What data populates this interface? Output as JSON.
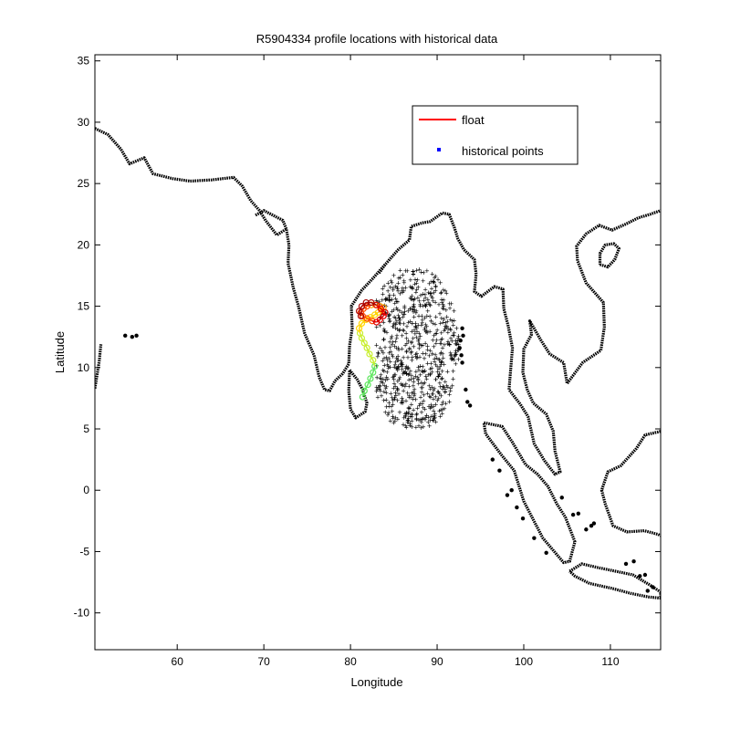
{
  "chart_data": {
    "type": "scatter",
    "title": "R5904334 profile locations with historical data",
    "xlabel": "Longitude",
    "ylabel": "Latitude",
    "xlim": [
      50.5,
      115.8
    ],
    "ylim": [
      -13,
      35.5
    ],
    "xticks": [
      60,
      70,
      80,
      90,
      100,
      110
    ],
    "yticks": [
      -10,
      -5,
      0,
      5,
      10,
      15,
      20,
      25,
      30,
      35
    ],
    "grid": false,
    "legend": {
      "placement": "top-right",
      "entries": [
        {
          "label": "float",
          "marker": "line",
          "color": "#ff0000"
        },
        {
          "label": "historical points",
          "marker": "dot",
          "color": "#0000ff"
        }
      ]
    },
    "series": [
      {
        "name": "float",
        "color": "#ff0000",
        "track_color_scale": [
          "#5ce65c",
          "#c8ee2c",
          "#ffd400",
          "#ff9a00",
          "#ff4a00",
          "#e00000",
          "#a80000"
        ],
        "x": [
          81.4,
          81.6,
          82.0,
          82.3,
          82.6,
          82.8,
          82.6,
          82.2,
          81.9,
          81.6,
          81.3,
          81.1,
          81.0,
          81.3,
          81.8,
          82.3,
          82.8,
          83.2,
          83.6,
          83.8,
          83.4,
          82.9,
          82.4,
          81.9,
          81.5,
          81.2,
          81.4,
          81.9,
          82.5,
          83.0,
          83.4,
          83.8,
          84.0,
          83.5,
          83.0,
          82.4,
          81.8,
          81.3,
          81.0,
          81.2
        ],
        "y": [
          7.6,
          8.1,
          8.6,
          9.1,
          9.6,
          10.1,
          10.6,
          11.1,
          11.6,
          12.0,
          12.4,
          12.8,
          13.2,
          13.6,
          13.9,
          14.1,
          14.3,
          14.5,
          14.7,
          14.9,
          15.0,
          15.1,
          15.1,
          15.0,
          14.8,
          14.5,
          14.2,
          14.0,
          13.8,
          13.7,
          13.9,
          14.2,
          14.5,
          14.8,
          15.1,
          15.3,
          15.3,
          15.0,
          14.6,
          14.2
        ]
      },
      {
        "name": "historical points",
        "color": "#0000ff",
        "region_lon": [
          83.0,
          93.0
        ],
        "region_lat": [
          5.0,
          18.0
        ],
        "points_plotted": "dense cloud"
      }
    ]
  },
  "coastline": {
    "color": "#000000",
    "segments": [
      [
        [
          50.5,
          29.5
        ],
        [
          52,
          29
        ],
        [
          53.5,
          27.8
        ],
        [
          54.5,
          26.6
        ],
        [
          56.2,
          27.1
        ],
        [
          57.2,
          25.8
        ],
        [
          59.5,
          25.4
        ],
        [
          61.5,
          25.2
        ],
        [
          64,
          25.3
        ],
        [
          66.5,
          25.5
        ],
        [
          67.5,
          24.8
        ],
        [
          68.5,
          23.6
        ],
        [
          69.5,
          22.8
        ],
        [
          70.2,
          22.0
        ],
        [
          71.5,
          20.8
        ],
        [
          72.6,
          21.3
        ],
        [
          72.9,
          20.0
        ],
        [
          72.8,
          18.5
        ],
        [
          73.4,
          16.5
        ],
        [
          74.0,
          15.0
        ],
        [
          74.7,
          12.8
        ],
        [
          75.8,
          11.0
        ],
        [
          76.4,
          9.2
        ],
        [
          77.0,
          8.2
        ],
        [
          77.6,
          8.1
        ],
        [
          78.2,
          8.9
        ],
        [
          79.1,
          9.5
        ],
        [
          79.8,
          10.3
        ],
        [
          79.9,
          11.8
        ],
        [
          80.2,
          13.2
        ],
        [
          80.1,
          15.0
        ],
        [
          81.3,
          16.3
        ],
        [
          82.5,
          17.2
        ],
        [
          84.0,
          18.4
        ],
        [
          85.5,
          19.6
        ],
        [
          86.8,
          20.4
        ],
        [
          87.0,
          21.5
        ],
        [
          88.3,
          21.8
        ],
        [
          89.2,
          21.9
        ],
        [
          90.6,
          22.6
        ],
        [
          91.4,
          22.5
        ],
        [
          92.0,
          21.4
        ],
        [
          92.4,
          20.5
        ],
        [
          93.1,
          19.6
        ],
        [
          94.3,
          18.8
        ],
        [
          94.5,
          17.6
        ],
        [
          94.3,
          16.2
        ],
        [
          95.1,
          15.8
        ],
        [
          96.6,
          16.6
        ],
        [
          97.6,
          16.4
        ],
        [
          97.7,
          14.8
        ],
        [
          98.2,
          13.4
        ],
        [
          98.7,
          11.6
        ],
        [
          98.5,
          9.9
        ],
        [
          98.3,
          8.2
        ],
        [
          99.6,
          7.0
        ],
        [
          100.5,
          6.0
        ],
        [
          101.2,
          3.8
        ],
        [
          102.4,
          2.4
        ],
        [
          103.6,
          1.3
        ],
        [
          104.2,
          1.5
        ],
        [
          103.6,
          3.2
        ],
        [
          103.4,
          4.8
        ],
        [
          102.6,
          6.2
        ],
        [
          101.1,
          7.1
        ],
        [
          100.4,
          8.2
        ],
        [
          99.9,
          9.6
        ],
        [
          100.0,
          11.5
        ],
        [
          100.9,
          12.7
        ],
        [
          100.7,
          13.8
        ],
        [
          102.0,
          12.2
        ],
        [
          103.0,
          11.1
        ],
        [
          104.6,
          10.4
        ],
        [
          105.0,
          8.7
        ],
        [
          106.8,
          10.4
        ],
        [
          108.9,
          11.4
        ],
        [
          109.3,
          13.3
        ],
        [
          109.2,
          15.3
        ],
        [
          107.2,
          16.9
        ],
        [
          106.2,
          18.7
        ],
        [
          106.1,
          19.9
        ],
        [
          107.2,
          20.9
        ],
        [
          108.7,
          21.6
        ],
        [
          110.2,
          21.2
        ],
        [
          111.8,
          21.7
        ],
        [
          113.2,
          22.2
        ],
        [
          114.6,
          22.5
        ],
        [
          115.8,
          22.8
        ]
      ],
      [
        [
          50.5,
          8.3
        ],
        [
          51.0,
          10.5
        ],
        [
          51.2,
          11.9
        ]
      ],
      [
        [
          79.9,
          9.8
        ],
        [
          80.8,
          9.0
        ],
        [
          81.4,
          8.2
        ],
        [
          81.9,
          7.1
        ],
        [
          81.7,
          6.4
        ],
        [
          80.6,
          5.9
        ],
        [
          80.0,
          6.6
        ],
        [
          79.8,
          8.1
        ],
        [
          79.9,
          9.8
        ]
      ],
      [
        [
          95.4,
          5.5
        ],
        [
          97.5,
          5.2
        ],
        [
          98.7,
          3.9
        ],
        [
          100.2,
          2.1
        ],
        [
          101.6,
          1.3
        ],
        [
          102.8,
          0.3
        ],
        [
          103.8,
          -1.1
        ],
        [
          104.8,
          -2.2
        ],
        [
          105.9,
          -4.2
        ],
        [
          105.3,
          -5.8
        ],
        [
          104.6,
          -5.9
        ],
        [
          103.4,
          -4.9
        ],
        [
          102.2,
          -3.9
        ],
        [
          101.1,
          -2.4
        ],
        [
          100.0,
          -0.9
        ],
        [
          98.9,
          1.6
        ],
        [
          97.4,
          2.9
        ],
        [
          95.6,
          4.6
        ],
        [
          95.4,
          5.5
        ]
      ],
      [
        [
          105.3,
          -6.6
        ],
        [
          106.7,
          -6.0
        ],
        [
          108.5,
          -6.3
        ],
        [
          110.6,
          -6.6
        ],
        [
          112.6,
          -6.9
        ],
        [
          114.5,
          -7.7
        ],
        [
          115.8,
          -8.3
        ],
        [
          115.8,
          -8.8
        ],
        [
          114.4,
          -8.7
        ],
        [
          112.3,
          -8.4
        ],
        [
          110.2,
          -8.0
        ],
        [
          107.6,
          -7.6
        ],
        [
          105.9,
          -7.0
        ],
        [
          105.3,
          -6.6
        ]
      ],
      [
        [
          115.8,
          4.8
        ],
        [
          114.0,
          4.5
        ],
        [
          113.0,
          3.4
        ],
        [
          111.2,
          2.0
        ],
        [
          109.7,
          1.5
        ],
        [
          109.0,
          0.0
        ],
        [
          109.4,
          -1.1
        ],
        [
          110.3,
          -2.9
        ],
        [
          111.9,
          -3.4
        ],
        [
          113.9,
          -3.3
        ],
        [
          115.5,
          -3.6
        ],
        [
          115.8,
          -3.7
        ]
      ],
      [
        [
          108.8,
          18.4
        ],
        [
          109.7,
          18.2
        ],
        [
          110.5,
          18.8
        ],
        [
          111.0,
          19.7
        ],
        [
          110.4,
          20.1
        ],
        [
          109.4,
          20.0
        ],
        [
          108.8,
          19.3
        ],
        [
          108.8,
          18.4
        ]
      ],
      [
        [
          72.6,
          21.3
        ],
        [
          72.2,
          22.0
        ],
        [
          70.0,
          22.8
        ],
        [
          69.0,
          22.4
        ]
      ],
      [
        [
          84.0,
          18.4
        ],
        [
          83.3,
          17.7
        ]
      ]
    ],
    "islands": [
      [
        54.0,
        12.6
      ],
      [
        54.8,
        12.5
      ],
      [
        55.3,
        12.6
      ],
      [
        92.8,
        11.0
      ],
      [
        92.7,
        12.2
      ],
      [
        92.9,
        13.2
      ],
      [
        93.0,
        12.6
      ],
      [
        92.6,
        11.6
      ],
      [
        92.9,
        10.4
      ],
      [
        93.3,
        8.2
      ],
      [
        93.5,
        7.2
      ],
      [
        93.8,
        6.9
      ],
      [
        96.4,
        2.5
      ],
      [
        97.2,
        1.6
      ],
      [
        98.6,
        0.0
      ],
      [
        99.2,
        -1.4
      ],
      [
        99.9,
        -2.3
      ],
      [
        101.2,
        -3.9
      ],
      [
        102.6,
        -5.1
      ],
      [
        98.1,
        -0.4
      ],
      [
        107.8,
        -2.9
      ],
      [
        106.3,
        -1.9
      ],
      [
        105.7,
        -2.0
      ],
      [
        104.4,
        -0.6
      ],
      [
        107.2,
        -3.2
      ],
      [
        108.1,
        -2.7
      ],
      [
        113.4,
        -7.0
      ],
      [
        114.0,
        -6.9
      ],
      [
        111.8,
        -6.0
      ],
      [
        112.7,
        -5.8
      ],
      [
        114.3,
        -8.2
      ],
      [
        114.9,
        -7.9
      ]
    ]
  }
}
